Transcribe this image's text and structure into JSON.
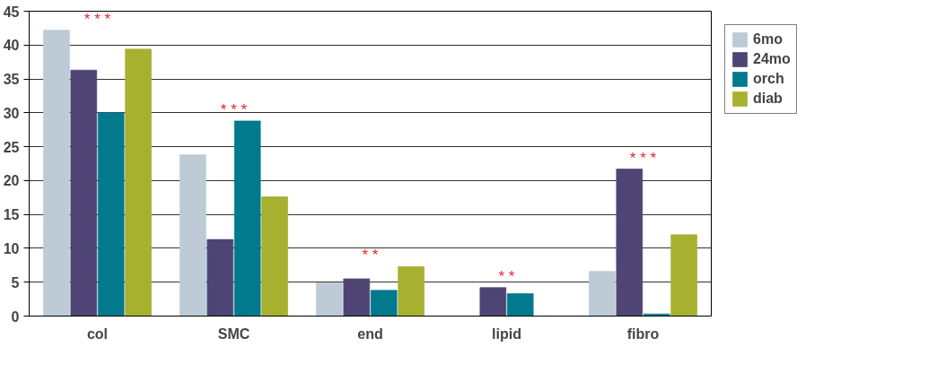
{
  "chart_data": {
    "type": "bar",
    "categories": [
      "col",
      "SMC",
      "end",
      "lipid",
      "fibro"
    ],
    "series": [
      {
        "name": "6mo",
        "color": "#bccbd6",
        "values": [
          42.2,
          23.8,
          4.9,
          0,
          6.6
        ]
      },
      {
        "name": "24mo",
        "color": "#4f4575",
        "values": [
          36.3,
          11.3,
          5.5,
          4.2,
          21.7
        ]
      },
      {
        "name": "orch",
        "color": "#007a8c",
        "values": [
          30,
          28.8,
          3.8,
          3.3,
          0.3
        ]
      },
      {
        "name": "diab",
        "color": "#a8b030",
        "values": [
          39.4,
          17.6,
          7.3,
          0,
          12
        ]
      }
    ],
    "ylim": [
      0,
      45
    ],
    "yticks": [
      0,
      5,
      10,
      15,
      20,
      25,
      30,
      35,
      40,
      45
    ],
    "grid": "y",
    "legend": "right",
    "annotations": [
      "* * *",
      "* * *",
      "* *",
      "* *",
      "* * *"
    ]
  }
}
